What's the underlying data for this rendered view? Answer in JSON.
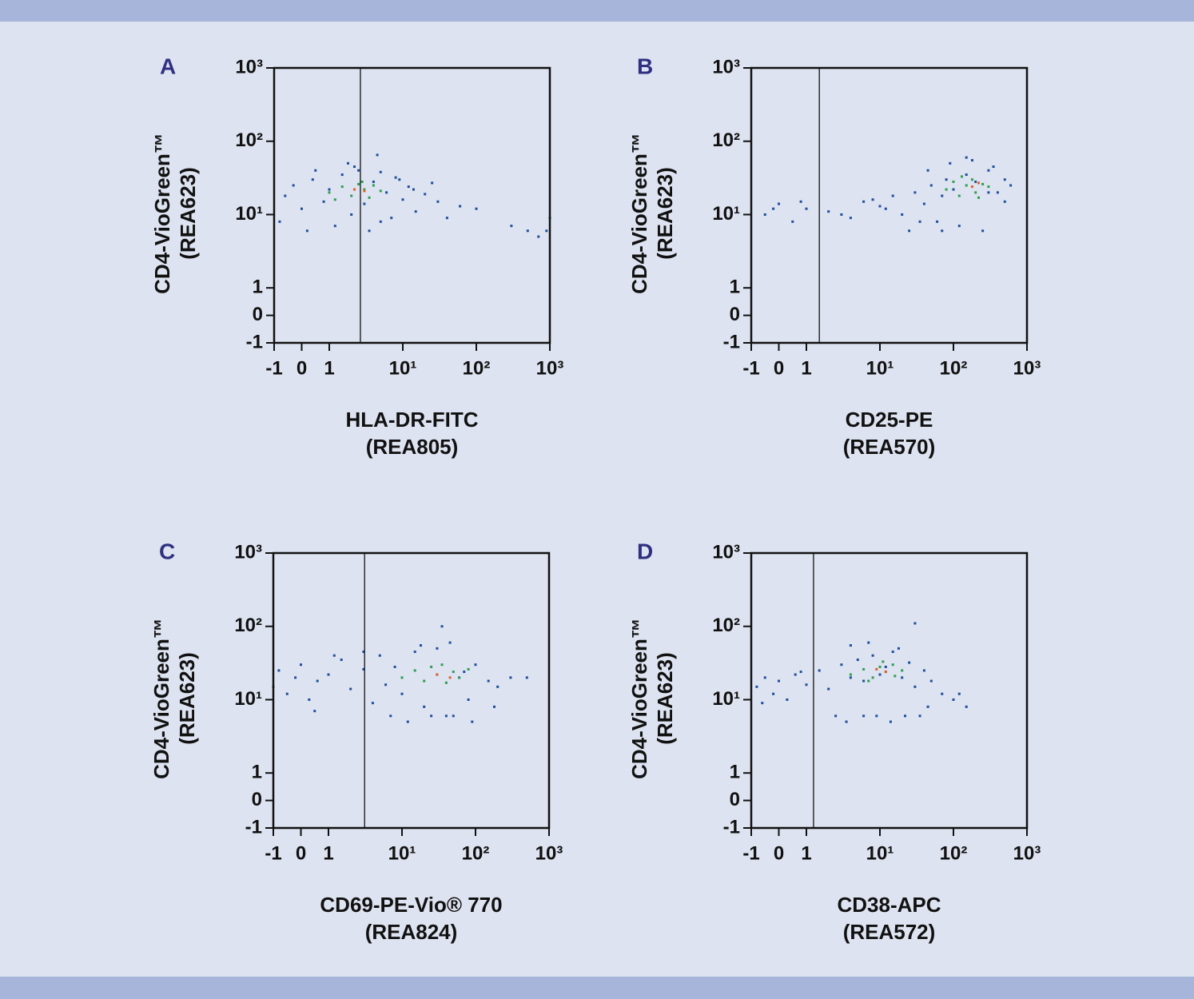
{
  "chart_data": [
    {
      "type": "scatter",
      "panel": "A",
      "xlabel": [
        "HLA-DR-FITC",
        "(REA805)"
      ],
      "ylabel": [
        "CD4-VioGreen™",
        "(REA623)"
      ],
      "xscale": "biexponential",
      "yscale": "biexponential",
      "xlim": [
        -1,
        1000
      ],
      "ylim": [
        -1,
        1000
      ],
      "xticks": [
        -1,
        0,
        1,
        {
          "value": 10,
          "label": "10¹"
        },
        {
          "value": 100,
          "label": "10²"
        },
        {
          "value": 1000,
          "label": "10³"
        }
      ],
      "yticks": [
        -1,
        0,
        1,
        {
          "value": 10,
          "label": "10¹"
        },
        {
          "value": 100,
          "label": "10²"
        },
        {
          "value": 1000,
          "label": "10³"
        }
      ],
      "gate_x": 2.65,
      "series": [
        {
          "color": "#1f4f9c",
          "x": [
            -0.6,
            -0.3,
            0,
            0.4,
            0.8,
            1,
            1.5,
            2,
            2.5,
            3,
            4,
            5,
            6,
            8,
            10,
            12,
            15,
            20,
            25,
            30,
            40,
            60,
            100,
            -0.8,
            0.2,
            1.2,
            2.2,
            3.5,
            5,
            7,
            9,
            14,
            0.5,
            1.8,
            4.5,
            900,
            1000,
            700,
            500,
            300
          ],
          "y": [
            18,
            25,
            12,
            30,
            15,
            22,
            35,
            10,
            40,
            14,
            28,
            8,
            20,
            32,
            16,
            24,
            11,
            19,
            27,
            15,
            9,
            13,
            12,
            8,
            6,
            7,
            45,
            6,
            38,
            9,
            30,
            22,
            40,
            50,
            65,
            6,
            9,
            5,
            6,
            7
          ]
        },
        {
          "color": "#2e9e4f",
          "x": [
            1,
            1.5,
            2,
            2.5,
            3,
            3.5,
            4,
            5,
            1.2,
            2.8
          ],
          "y": [
            20,
            24,
            18,
            26,
            22,
            17,
            25,
            21,
            16,
            28
          ]
        },
        {
          "color": "#e0602a",
          "x": [
            2.2,
            3
          ],
          "y": [
            22,
            21
          ]
        }
      ]
    },
    {
      "type": "scatter",
      "panel": "B",
      "xlabel": [
        "CD25-PE",
        "(REA570)"
      ],
      "ylabel": [
        "CD4-VioGreen™",
        "(REA623)"
      ],
      "xscale": "biexponential",
      "yscale": "biexponential",
      "xlim": [
        -1,
        1000
      ],
      "ylim": [
        -1,
        1000
      ],
      "xticks": [
        -1,
        0,
        1,
        {
          "value": 10,
          "label": "10¹"
        },
        {
          "value": 100,
          "label": "10²"
        },
        {
          "value": 1000,
          "label": "10³"
        }
      ],
      "yticks": [
        -1,
        0,
        1,
        {
          "value": 10,
          "label": "10¹"
        },
        {
          "value": 100,
          "label": "10²"
        },
        {
          "value": 1000,
          "label": "10³"
        }
      ],
      "gate_x": 1.5,
      "series": [
        {
          "color": "#1f4f9c",
          "x": [
            -0.5,
            0,
            0.5,
            1,
            2,
            4,
            6,
            10,
            15,
            20,
            30,
            40,
            50,
            60,
            80,
            100,
            150,
            200,
            300,
            400,
            500,
            600,
            25,
            35,
            70,
            120,
            250,
            45,
            90,
            180,
            350,
            12,
            8,
            -0.2,
            0.8,
            3,
            70,
            150,
            300,
            500
          ],
          "y": [
            10,
            14,
            8,
            12,
            11,
            9,
            15,
            13,
            18,
            10,
            20,
            14,
            25,
            8,
            30,
            22,
            35,
            28,
            40,
            20,
            30,
            25,
            6,
            8,
            6,
            7,
            6,
            40,
            50,
            55,
            45,
            12,
            16,
            12,
            15,
            10,
            18,
            60,
            20,
            15
          ]
        },
        {
          "color": "#2e9e4f",
          "x": [
            80,
            100,
            120,
            150,
            180,
            200,
            250,
            300,
            130,
            220
          ],
          "y": [
            22,
            28,
            18,
            25,
            30,
            20,
            26,
            24,
            33,
            17
          ]
        },
        {
          "color": "#e0602a",
          "x": [
            180,
            220
          ],
          "y": [
            24,
            27
          ]
        }
      ]
    },
    {
      "type": "scatter",
      "panel": "C",
      "xlabel": [
        "CD69-PE-Vio® 770",
        "(REA824)"
      ],
      "ylabel": [
        "CD4-VioGreen™",
        "(REA623)"
      ],
      "xscale": "biexponential",
      "yscale": "biexponential",
      "xlim": [
        -1,
        1000
      ],
      "ylim": [
        -1,
        1000
      ],
      "xticks": [
        -1,
        0,
        1,
        {
          "value": 10,
          "label": "10¹"
        },
        {
          "value": 100,
          "label": "10²"
        },
        {
          "value": 1000,
          "label": "10³"
        }
      ],
      "yticks": [
        -1,
        0,
        1,
        {
          "value": 10,
          "label": "10¹"
        },
        {
          "value": 100,
          "label": "10²"
        },
        {
          "value": 1000,
          "label": "10³"
        }
      ],
      "gate_x": 3.1,
      "series": [
        {
          "color": "#1f4f9c",
          "x": [
            -1,
            -0.8,
            -0.5,
            -0.2,
            0,
            0.3,
            0.6,
            1,
            1.5,
            2,
            3,
            4,
            5,
            6,
            8,
            10,
            15,
            20,
            30,
            40,
            60,
            80,
            100,
            150,
            200,
            300,
            500,
            7,
            12,
            25,
            50,
            90,
            180,
            3,
            18,
            45,
            0.5,
            1.2,
            35,
            70
          ],
          "y": [
            15,
            25,
            12,
            20,
            30,
            10,
            18,
            22,
            35,
            14,
            26,
            9,
            40,
            16,
            28,
            12,
            45,
            8,
            50,
            6,
            20,
            10,
            30,
            18,
            15,
            20,
            20,
            6,
            5,
            6,
            6,
            5,
            8,
            45,
            55,
            60,
            7,
            40,
            100,
            24
          ]
        },
        {
          "color": "#2e9e4f",
          "x": [
            10,
            15,
            20,
            25,
            30,
            40,
            50,
            60,
            80,
            35
          ],
          "y": [
            20,
            25,
            18,
            28,
            22,
            17,
            24,
            20,
            26,
            30
          ]
        },
        {
          "color": "#e0602a",
          "x": [
            30,
            45
          ],
          "y": [
            22,
            20
          ]
        }
      ]
    },
    {
      "type": "scatter",
      "panel": "D",
      "xlabel": [
        "CD38-APC",
        "(REA572)"
      ],
      "ylabel": [
        "CD4-VioGreen™",
        "(REA623)"
      ],
      "xscale": "biexponential",
      "yscale": "biexponential",
      "xlim": [
        -1,
        1000
      ],
      "ylim": [
        -1,
        1000
      ],
      "xticks": [
        -1,
        0,
        1,
        {
          "value": 10,
          "label": "10¹"
        },
        {
          "value": 100,
          "label": "10²"
        },
        {
          "value": 1000,
          "label": "10³"
        }
      ],
      "yticks": [
        -1,
        0,
        1,
        {
          "value": 10,
          "label": "10¹"
        },
        {
          "value": 100,
          "label": "10²"
        },
        {
          "value": 1000,
          "label": "10³"
        }
      ],
      "gate_x": 1.25,
      "series": [
        {
          "color": "#1f4f9c",
          "x": [
            -0.8,
            -0.5,
            -0.2,
            0,
            0.3,
            0.6,
            1,
            1.5,
            2,
            3,
            4,
            5,
            6,
            8,
            10,
            12,
            15,
            20,
            25,
            30,
            40,
            50,
            70,
            100,
            150,
            2.5,
            3.5,
            6,
            9,
            14,
            22,
            35,
            4,
            7,
            18,
            -0.6,
            0.8,
            30,
            45,
            120
          ],
          "y": [
            15,
            20,
            12,
            18,
            10,
            22,
            16,
            25,
            14,
            30,
            20,
            35,
            18,
            40,
            22,
            28,
            45,
            20,
            32,
            15,
            25,
            18,
            12,
            10,
            8,
            6,
            5,
            6,
            6,
            5,
            6,
            6,
            55,
            60,
            50,
            9,
            24,
            110,
            8,
            12
          ]
        },
        {
          "color": "#2e9e4f",
          "x": [
            4,
            6,
            8,
            10,
            12,
            15,
            20,
            7,
            11,
            16
          ],
          "y": [
            22,
            26,
            20,
            28,
            24,
            30,
            25,
            18,
            33,
            21
          ]
        },
        {
          "color": "#e0602a",
          "x": [
            9,
            12
          ],
          "y": [
            26,
            24
          ]
        }
      ]
    }
  ]
}
